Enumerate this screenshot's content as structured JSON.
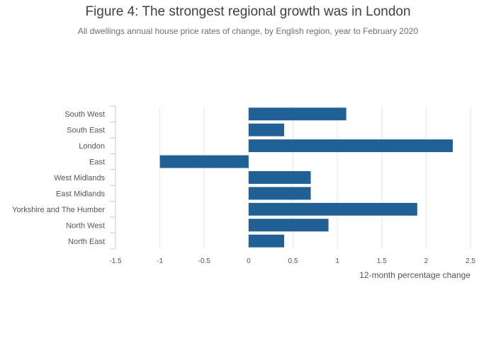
{
  "chart_data": {
    "type": "bar",
    "orientation": "horizontal",
    "title": "Figure 4: The strongest regional growth was in London",
    "subtitle": "All dwellings annual house price rates of change, by English region, year to February 2020",
    "xlabel": "12-month percentage change",
    "ylabel": "",
    "categories": [
      "South West",
      "South East",
      "London",
      "East",
      "West Midlands",
      "East Midlands",
      "Yorkshire and The Humber",
      "North West",
      "North East"
    ],
    "values": [
      1.1,
      0.4,
      2.3,
      -1.0,
      0.7,
      0.7,
      1.9,
      0.9,
      0.4
    ],
    "xlim": [
      -1.5,
      2.5
    ],
    "xticks": [
      -1.5,
      -1,
      -0.5,
      0,
      0.5,
      1,
      1.5,
      2,
      2.5
    ],
    "xtick_labels": [
      "-1.5",
      "-1",
      "-0.5",
      "0",
      "0.5",
      "1",
      "1.5",
      "2",
      "2.5"
    ],
    "grid": true,
    "bar_color": "#206095"
  }
}
